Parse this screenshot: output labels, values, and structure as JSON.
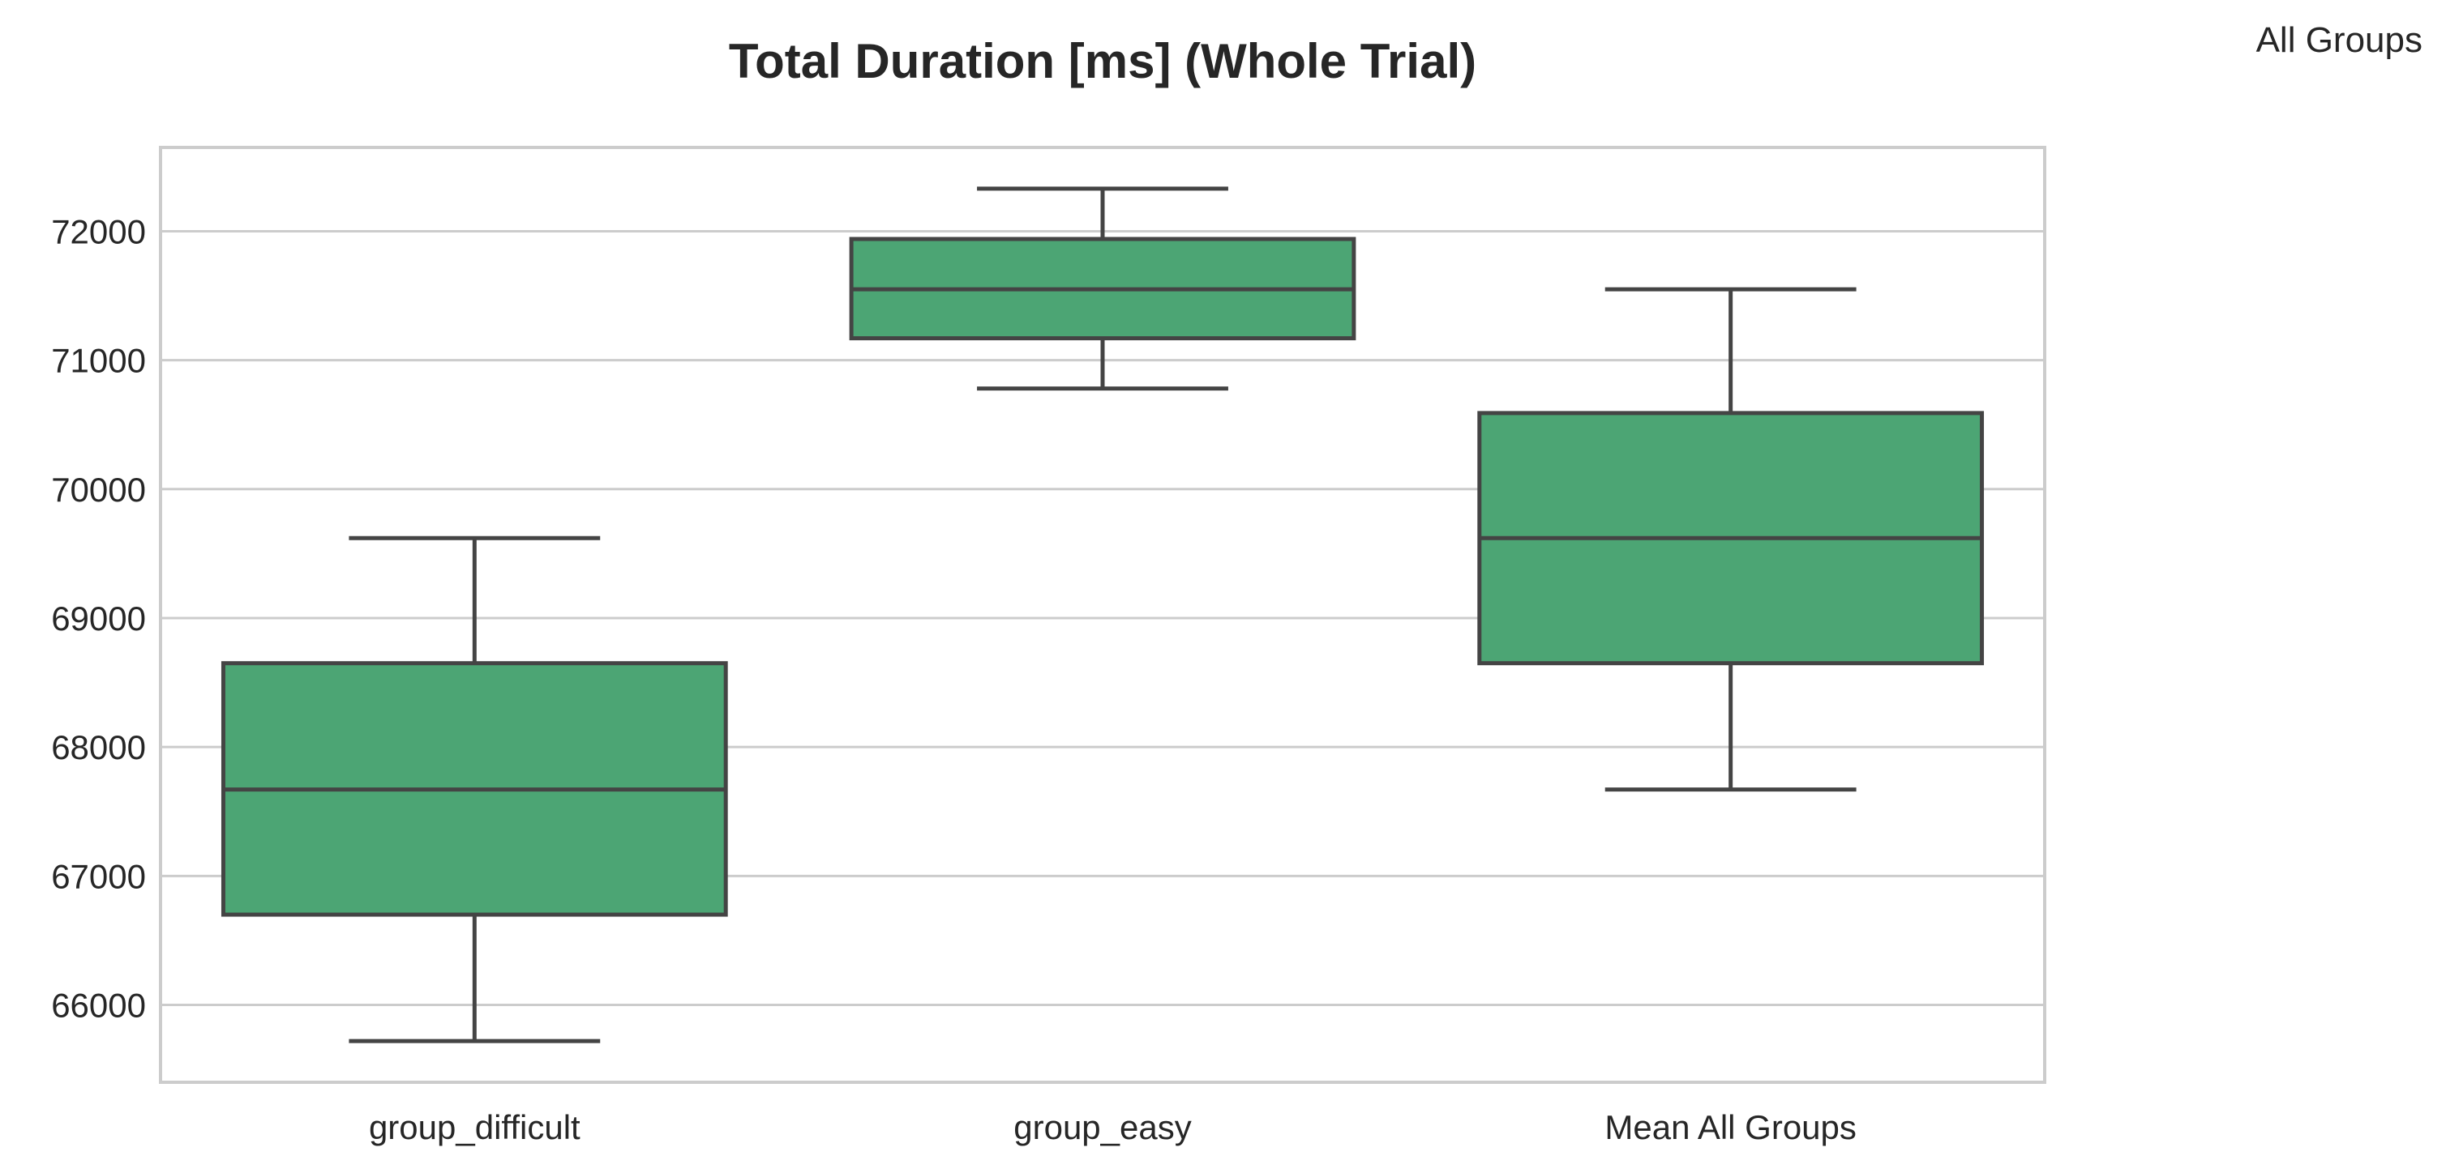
{
  "chart_data": {
    "type": "box",
    "title": "Total Duration [ms] (Whole Trial)",
    "legend_title": "All Groups",
    "xlabel": "",
    "ylabel": "",
    "ylim": [
      65400,
      72650
    ],
    "yticks": [
      66000,
      67000,
      68000,
      69000,
      70000,
      71000,
      72000
    ],
    "grid": "horizontal",
    "categories": [
      "group_difficult",
      "group_easy",
      "Mean All Groups"
    ],
    "boxes": [
      {
        "category": "group_difficult",
        "whisker_low": 65720,
        "q1": 66700,
        "median": 67670,
        "q3": 68650,
        "whisker_high": 69620
      },
      {
        "category": "group_easy",
        "whisker_low": 70780,
        "q1": 71170,
        "median": 71550,
        "q3": 71940,
        "whisker_high": 72330
      },
      {
        "category": "Mean All Groups",
        "whisker_low": 67670,
        "q1": 68650,
        "median": 69620,
        "q3": 70590,
        "whisker_high": 71550
      }
    ],
    "colors": {
      "box_fill": "#4ca574",
      "box_edge": "#444444",
      "grid": "#cccccc",
      "frame": "#cccccc"
    }
  }
}
